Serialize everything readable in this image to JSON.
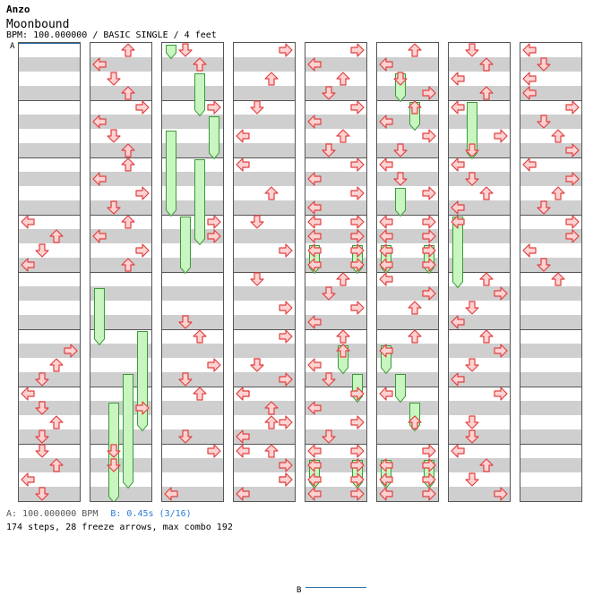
{
  "header": {
    "artist": "Anzo",
    "title": "Moonbound",
    "info": "BPM: 100.000000 / BASIC SINGLE / 4 feet"
  },
  "footer": {
    "bpm_a": "A: 100.000000 BPM",
    "bpm_b": "B: 0.45s (3/16)",
    "stats": "174 steps, 28 freeze arrows, max combo 192"
  },
  "markers": [
    {
      "label": "A",
      "column": 0,
      "beat": 0
    },
    {
      "label": "B",
      "column": 4,
      "beat": 38
    }
  ],
  "colors": {
    "arrow_fill": "#ffd2d2",
    "arrow_stroke": "#e04040",
    "freeze_fill": "#c8f5c0",
    "freeze_stroke": "#3a9a3a",
    "marker_line": "#2e6da4",
    "stripe": "#cfcfcf"
  },
  "steps": [
    [
      0,
      12,
      [
        "L"
      ]
    ],
    [
      0,
      13,
      [
        "U"
      ]
    ],
    [
      0,
      14,
      [
        "D"
      ]
    ],
    [
      0,
      15,
      [
        "L"
      ]
    ],
    [
      0,
      21,
      [
        "R"
      ]
    ],
    [
      0,
      22,
      [
        "U"
      ]
    ],
    [
      0,
      23,
      [
        "D"
      ]
    ],
    [
      0,
      24,
      [
        "L"
      ]
    ],
    [
      0,
      25,
      [
        "D"
      ]
    ],
    [
      0,
      26,
      [
        "U"
      ]
    ],
    [
      0,
      27,
      [
        "D"
      ]
    ],
    [
      0,
      28,
      [
        "D"
      ]
    ],
    [
      0,
      29,
      [
        "U"
      ]
    ],
    [
      0,
      30,
      [
        "L"
      ]
    ],
    [
      0,
      31,
      [
        "D"
      ]
    ],
    [
      1,
      0,
      [
        "U"
      ]
    ],
    [
      1,
      1,
      [
        "L"
      ]
    ],
    [
      1,
      2,
      [
        "D"
      ]
    ],
    [
      1,
      3,
      [
        "U"
      ]
    ],
    [
      1,
      4,
      [
        "R"
      ]
    ],
    [
      1,
      5,
      [
        "L"
      ]
    ],
    [
      1,
      6,
      [
        "D"
      ]
    ],
    [
      1,
      7,
      [
        "U"
      ]
    ],
    [
      1,
      8,
      [
        "U"
      ]
    ],
    [
      1,
      9,
      [
        "L"
      ]
    ],
    [
      1,
      10,
      [
        "R"
      ]
    ],
    [
      1,
      11,
      [
        "D"
      ]
    ],
    [
      1,
      12,
      [
        "U"
      ]
    ],
    [
      1,
      13,
      [
        "L"
      ]
    ],
    [
      1,
      14,
      [
        "R"
      ]
    ],
    [
      1,
      15,
      [
        "U"
      ]
    ],
    [
      1,
      25,
      [
        "R"
      ]
    ],
    [
      1,
      28,
      [
        "D"
      ]
    ],
    [
      1,
      29,
      [
        "D"
      ]
    ],
    [
      2,
      0,
      [
        "D"
      ]
    ],
    [
      2,
      1,
      [
        "U"
      ]
    ],
    [
      2,
      4,
      [
        "R"
      ]
    ],
    [
      2,
      12,
      [
        "R"
      ]
    ],
    [
      2,
      13,
      [
        "R"
      ]
    ],
    [
      2,
      19,
      [
        "D"
      ]
    ],
    [
      2,
      20,
      [
        "U"
      ]
    ],
    [
      2,
      22,
      [
        "R"
      ]
    ],
    [
      2,
      23,
      [
        "D"
      ]
    ],
    [
      2,
      24,
      [
        "U"
      ]
    ],
    [
      2,
      27,
      [
        "D"
      ]
    ],
    [
      2,
      28,
      [
        "R"
      ]
    ],
    [
      2,
      31,
      [
        "L"
      ]
    ],
    [
      3,
      0,
      [
        "R"
      ]
    ],
    [
      3,
      2,
      [
        "U"
      ]
    ],
    [
      3,
      4,
      [
        "D"
      ]
    ],
    [
      3,
      6,
      [
        "L"
      ]
    ],
    [
      3,
      8,
      [
        "L"
      ]
    ],
    [
      3,
      10,
      [
        "U"
      ]
    ],
    [
      3,
      12,
      [
        "D"
      ]
    ],
    [
      3,
      14,
      [
        "R"
      ]
    ],
    [
      3,
      16,
      [
        "D"
      ]
    ],
    [
      3,
      18,
      [
        "R"
      ]
    ],
    [
      3,
      20,
      [
        "R"
      ]
    ],
    [
      3,
      22,
      [
        "D"
      ]
    ],
    [
      3,
      24,
      [
        "L"
      ]
    ],
    [
      3,
      26,
      [
        "U"
      ]
    ],
    [
      3,
      28,
      [
        "L"
      ]
    ],
    [
      3,
      30,
      [
        "R"
      ]
    ],
    [
      3,
      22,
      [
        "D"
      ]
    ],
    [
      3,
      23,
      [
        "R"
      ]
    ],
    [
      3,
      24,
      [
        "L"
      ]
    ],
    [
      3,
      25,
      [
        "U"
      ]
    ],
    [
      3,
      26,
      [
        "R"
      ]
    ],
    [
      3,
      27,
      [
        "L"
      ]
    ],
    [
      3,
      28,
      [
        "U"
      ]
    ],
    [
      3,
      29,
      [
        "R"
      ]
    ],
    [
      3,
      30,
      [
        "R"
      ]
    ],
    [
      3,
      31,
      [
        "L"
      ]
    ],
    [
      4,
      0,
      [
        "R"
      ]
    ],
    [
      4,
      1,
      [
        "L"
      ]
    ],
    [
      4,
      2,
      [
        "U"
      ]
    ],
    [
      4,
      3,
      [
        "D"
      ]
    ],
    [
      4,
      4,
      [
        "R"
      ]
    ],
    [
      4,
      5,
      [
        "L"
      ]
    ],
    [
      4,
      6,
      [
        "U"
      ]
    ],
    [
      4,
      7,
      [
        "D"
      ]
    ],
    [
      4,
      8,
      [
        "R"
      ]
    ],
    [
      4,
      9,
      [
        "L"
      ]
    ],
    [
      4,
      10,
      [
        "R"
      ]
    ],
    [
      4,
      11,
      [
        "L"
      ]
    ],
    [
      4,
      12,
      [
        "L",
        "R"
      ]
    ],
    [
      4,
      13,
      [
        "L",
        "R"
      ]
    ],
    [
      4,
      14,
      [
        "L",
        "R"
      ]
    ],
    [
      4,
      15,
      [
        "L",
        "R"
      ]
    ],
    [
      4,
      16,
      [
        "U"
      ]
    ],
    [
      4,
      17,
      [
        "D"
      ]
    ],
    [
      4,
      18,
      [
        "R"
      ]
    ],
    [
      4,
      19,
      [
        "L"
      ]
    ],
    [
      4,
      20,
      [
        "U"
      ]
    ],
    [
      4,
      21,
      [
        "U"
      ]
    ],
    [
      4,
      22,
      [
        "L"
      ]
    ],
    [
      4,
      23,
      [
        "D"
      ]
    ],
    [
      4,
      24,
      [
        "R"
      ]
    ],
    [
      4,
      25,
      [
        "L"
      ]
    ],
    [
      4,
      26,
      [
        "R"
      ]
    ],
    [
      4,
      27,
      [
        "D"
      ]
    ],
    [
      4,
      28,
      [
        "L",
        "R"
      ]
    ],
    [
      4,
      29,
      [
        "L",
        "R"
      ]
    ],
    [
      4,
      30,
      [
        "L",
        "R"
      ]
    ],
    [
      4,
      31,
      [
        "L",
        "R"
      ]
    ],
    [
      5,
      0,
      [
        "U"
      ]
    ],
    [
      5,
      1,
      [
        "L"
      ]
    ],
    [
      5,
      2,
      [
        "D"
      ]
    ],
    [
      5,
      3,
      [
        "R"
      ]
    ],
    [
      5,
      4,
      [
        "U"
      ]
    ],
    [
      5,
      5,
      [
        "L"
      ]
    ],
    [
      5,
      6,
      [
        "R"
      ]
    ],
    [
      5,
      7,
      [
        "D"
      ]
    ],
    [
      5,
      8,
      [
        "L"
      ]
    ],
    [
      5,
      9,
      [
        "D"
      ]
    ],
    [
      5,
      10,
      [
        "R"
      ]
    ],
    [
      5,
      12,
      [
        "L",
        "R"
      ]
    ],
    [
      5,
      13,
      [
        "L",
        "R"
      ]
    ],
    [
      5,
      14,
      [
        "L",
        "R"
      ]
    ],
    [
      5,
      15,
      [
        "L",
        "R"
      ]
    ],
    [
      5,
      16,
      [
        "L"
      ]
    ],
    [
      5,
      17,
      [
        "R"
      ]
    ],
    [
      5,
      18,
      [
        "U"
      ]
    ],
    [
      5,
      20,
      [
        "U"
      ]
    ],
    [
      5,
      21,
      [
        "L"
      ]
    ],
    [
      5,
      24,
      [
        "L"
      ]
    ],
    [
      5,
      26,
      [
        "U"
      ]
    ],
    [
      5,
      28,
      [
        "R"
      ]
    ],
    [
      5,
      29,
      [
        "L",
        "R"
      ]
    ],
    [
      5,
      30,
      [
        "L",
        "R"
      ]
    ],
    [
      5,
      31,
      [
        "L",
        "R"
      ]
    ],
    [
      6,
      0,
      [
        "D"
      ]
    ],
    [
      6,
      1,
      [
        "U"
      ]
    ],
    [
      6,
      2,
      [
        "L"
      ]
    ],
    [
      6,
      3,
      [
        "U"
      ]
    ],
    [
      6,
      4,
      [
        "L"
      ]
    ],
    [
      6,
      6,
      [
        "R"
      ]
    ],
    [
      6,
      7,
      [
        "D"
      ]
    ],
    [
      6,
      8,
      [
        "L"
      ]
    ],
    [
      6,
      9,
      [
        "D"
      ]
    ],
    [
      6,
      10,
      [
        "U"
      ]
    ],
    [
      6,
      11,
      [
        "L"
      ]
    ],
    [
      6,
      12,
      [
        "L"
      ]
    ],
    [
      6,
      16,
      [
        "U"
      ]
    ],
    [
      6,
      17,
      [
        "R"
      ]
    ],
    [
      6,
      18,
      [
        "D"
      ]
    ],
    [
      6,
      19,
      [
        "L"
      ]
    ],
    [
      6,
      20,
      [
        "U"
      ]
    ],
    [
      6,
      21,
      [
        "R"
      ]
    ],
    [
      6,
      22,
      [
        "D"
      ]
    ],
    [
      6,
      23,
      [
        "L"
      ]
    ],
    [
      6,
      24,
      [
        "R"
      ]
    ],
    [
      6,
      26,
      [
        "D"
      ]
    ],
    [
      6,
      27,
      [
        "D"
      ]
    ],
    [
      6,
      28,
      [
        "L"
      ]
    ],
    [
      6,
      29,
      [
        "U"
      ]
    ],
    [
      6,
      30,
      [
        "D"
      ]
    ],
    [
      6,
      31,
      [
        "R"
      ]
    ],
    [
      7,
      0,
      [
        "L"
      ]
    ],
    [
      7,
      1,
      [
        "D"
      ]
    ],
    [
      7,
      2,
      [
        "L"
      ]
    ],
    [
      7,
      3,
      [
        "L"
      ]
    ],
    [
      7,
      4,
      [
        "R"
      ]
    ],
    [
      7,
      5,
      [
        "D"
      ]
    ],
    [
      7,
      6,
      [
        "U"
      ]
    ],
    [
      7,
      7,
      [
        "R"
      ]
    ],
    [
      7,
      8,
      [
        "L"
      ]
    ],
    [
      7,
      9,
      [
        "R"
      ]
    ],
    [
      7,
      10,
      [
        "U"
      ]
    ],
    [
      7,
      11,
      [
        "D"
      ]
    ],
    [
      7,
      12,
      [
        "R"
      ]
    ],
    [
      7,
      13,
      [
        "R"
      ]
    ],
    [
      7,
      14,
      [
        "L"
      ]
    ],
    [
      7,
      15,
      [
        "D"
      ]
    ],
    [
      7,
      16,
      [
        "U"
      ]
    ]
  ],
  "freezes": [
    [
      1,
      17,
      21,
      "L"
    ],
    [
      1,
      20,
      27,
      "R"
    ],
    [
      1,
      23,
      31,
      "U"
    ],
    [
      1,
      25,
      32,
      "D"
    ],
    [
      2,
      0,
      1,
      "L"
    ],
    [
      2,
      2,
      5,
      "U"
    ],
    [
      2,
      5,
      8,
      "R"
    ],
    [
      2,
      6,
      12,
      "L"
    ],
    [
      2,
      8,
      14,
      "U"
    ],
    [
      2,
      12,
      16,
      "D"
    ],
    [
      4,
      14,
      16,
      "L"
    ],
    [
      4,
      14,
      16,
      "R"
    ],
    [
      4,
      29,
      31,
      "L"
    ],
    [
      4,
      29,
      31,
      "R"
    ],
    [
      4,
      21,
      23,
      "U"
    ],
    [
      4,
      23,
      25,
      "R"
    ],
    [
      5,
      2,
      4,
      "D"
    ],
    [
      5,
      4,
      6,
      "U"
    ],
    [
      5,
      10,
      12,
      "D"
    ],
    [
      5,
      14,
      16,
      "L"
    ],
    [
      5,
      14,
      16,
      "R"
    ],
    [
      5,
      21,
      23,
      "L"
    ],
    [
      5,
      23,
      25,
      "D"
    ],
    [
      5,
      25,
      27,
      "U"
    ],
    [
      5,
      29,
      31,
      "L"
    ],
    [
      5,
      29,
      31,
      "R"
    ],
    [
      6,
      4,
      8,
      "D"
    ],
    [
      6,
      12,
      17,
      "L"
    ]
  ]
}
